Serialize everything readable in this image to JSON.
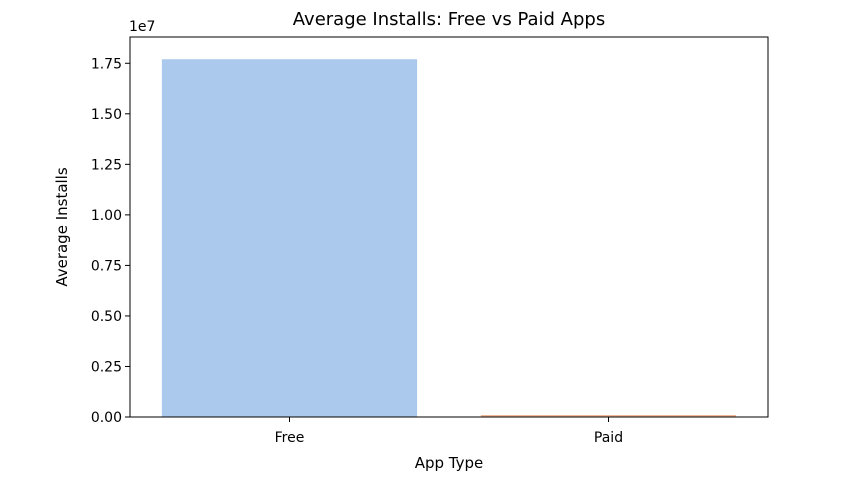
{
  "chart_data": {
    "type": "bar",
    "title": "Average Installs: Free vs Paid Apps",
    "xlabel": "App Type",
    "ylabel": "Average Installs",
    "categories": [
      "Free",
      "Paid"
    ],
    "values": [
      17700000,
      100000
    ],
    "colors": [
      "#abc9ec",
      "#f0b896"
    ],
    "ylim": [
      0,
      18800000
    ],
    "yticks": [
      0,
      2500000,
      5000000,
      7500000,
      10000000,
      12500000,
      15000000,
      17500000
    ],
    "ytick_labels": [
      "0.00",
      "0.25",
      "0.50",
      "0.75",
      "1.00",
      "1.25",
      "1.50",
      "1.75"
    ],
    "y_offset_label": "1e7",
    "grid": false,
    "legend": "none"
  }
}
